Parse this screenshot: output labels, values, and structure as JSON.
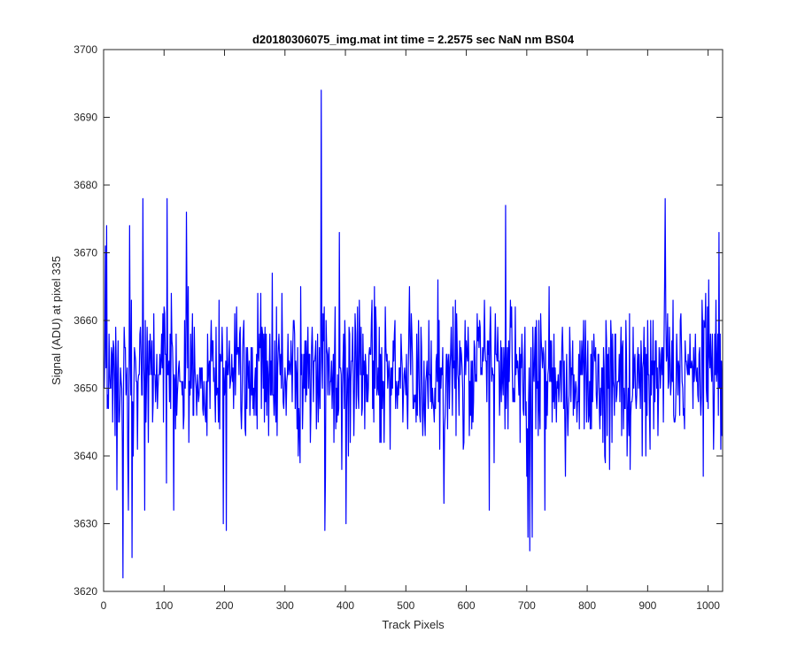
{
  "chart_data": {
    "type": "line",
    "title": "d20180306075_img.mat int time = 2.2575 sec  NaN nm BS04",
    "xlabel": "Track Pixels",
    "ylabel": "Signal (ADU) at pixel 335",
    "xlim": [
      0,
      1024
    ],
    "ylim": [
      3620,
      3700
    ],
    "xticks": [
      0,
      100,
      200,
      300,
      400,
      500,
      600,
      700,
      800,
      900,
      1000
    ],
    "yticks": [
      3620,
      3630,
      3640,
      3650,
      3660,
      3670,
      3680,
      3690,
      3700
    ],
    "grid": false,
    "legend": "none",
    "series_color": "#0000ff",
    "mean_level": 3652,
    "noise_amplitude": 5.5,
    "series": [
      {
        "name": "",
        "sampled": true,
        "n_points": 1024,
        "landmarks": [
          {
            "x": 0,
            "y": 3650
          },
          {
            "x": 2,
            "y": 3671
          },
          {
            "x": 4,
            "y": 3674
          },
          {
            "x": 21,
            "y": 3635
          },
          {
            "x": 31,
            "y": 3622
          },
          {
            "x": 40,
            "y": 3632
          },
          {
            "x": 42,
            "y": 3674
          },
          {
            "x": 46,
            "y": 3625
          },
          {
            "x": 64,
            "y": 3678
          },
          {
            "x": 67,
            "y": 3632
          },
          {
            "x": 104,
            "y": 3678
          },
          {
            "x": 115,
            "y": 3632
          },
          {
            "x": 136,
            "y": 3676
          },
          {
            "x": 197,
            "y": 3630
          },
          {
            "x": 202,
            "y": 3629
          },
          {
            "x": 359,
            "y": 3694
          },
          {
            "x": 365,
            "y": 3629
          },
          {
            "x": 389,
            "y": 3673
          },
          {
            "x": 400,
            "y": 3630
          },
          {
            "x": 562,
            "y": 3633
          },
          {
            "x": 637,
            "y": 3632
          },
          {
            "x": 664,
            "y": 3677
          },
          {
            "x": 701,
            "y": 3628
          },
          {
            "x": 704,
            "y": 3626
          },
          {
            "x": 708,
            "y": 3628
          },
          {
            "x": 729,
            "y": 3632
          },
          {
            "x": 928,
            "y": 3678
          },
          {
            "x": 1017,
            "y": 3673
          },
          {
            "x": 1020,
            "y": 3641
          }
        ]
      }
    ]
  }
}
